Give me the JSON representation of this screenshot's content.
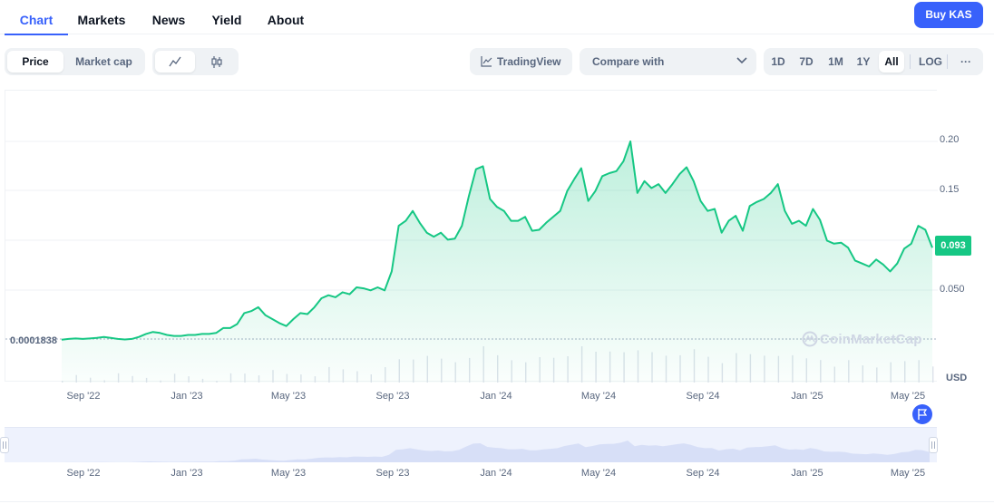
{
  "nav": {
    "tabs": [
      {
        "label": "Chart",
        "active": true
      },
      {
        "label": "Markets"
      },
      {
        "label": "News"
      },
      {
        "label": "Yield"
      },
      {
        "label": "About"
      }
    ],
    "buy_label": "Buy KAS"
  },
  "toolbar": {
    "metric": [
      "Price",
      "Market cap"
    ],
    "metric_active": "Price",
    "chart_style_icons": [
      "line-chart-icon",
      "candlestick-icon"
    ],
    "tradingview_label": "TradingView",
    "compare_label": "Compare with",
    "ranges": [
      "1D",
      "7D",
      "1M",
      "1Y",
      "All"
    ],
    "range_active": "All",
    "log_label": "LOG",
    "more_label": "···"
  },
  "chart": {
    "current_price": "0.093",
    "start_price": "0.0001838",
    "currency": "USD",
    "watermark": "CoinMarketCap",
    "y_ticks": [
      "0.20",
      "0.15",
      "0.050"
    ],
    "x_ticks": [
      "Sep '22",
      "Jan '23",
      "May '23",
      "Sep '23",
      "Jan '24",
      "May '24",
      "Sep '24",
      "Jan '25",
      "May '25"
    ],
    "line_color": "#16c784",
    "accent": "#3861fb"
  },
  "chart_data": {
    "type": "area",
    "xlabel": "",
    "ylabel": "USD",
    "ylim": [
      0,
      0.24
    ],
    "series": [
      {
        "values": [
          0.0002,
          0.001,
          0.0015,
          0.001,
          0.0015,
          0.002,
          0.003,
          0.002,
          0.001,
          0.0005,
          0.001,
          0.003,
          0.006,
          0.008,
          0.007,
          0.005,
          0.004,
          0.004,
          0.005,
          0.005,
          0.006,
          0.006,
          0.007,
          0.012,
          0.012,
          0.016,
          0.027,
          0.029,
          0.033,
          0.025,
          0.021,
          0.017,
          0.014,
          0.021,
          0.027,
          0.026,
          0.033,
          0.042,
          0.045,
          0.043,
          0.048,
          0.046,
          0.053,
          0.052,
          0.05,
          0.053,
          0.05,
          0.069,
          0.115,
          0.12,
          0.13,
          0.118,
          0.108,
          0.104,
          0.108,
          0.101,
          0.102,
          0.115,
          0.145,
          0.172,
          0.175,
          0.142,
          0.134,
          0.13,
          0.12,
          0.12,
          0.124,
          0.11,
          0.111,
          0.118,
          0.124,
          0.13,
          0.15,
          0.162,
          0.173,
          0.14,
          0.15,
          0.165,
          0.168,
          0.17,
          0.18,
          0.2,
          0.148,
          0.16,
          0.153,
          0.157,
          0.148,
          0.157,
          0.167,
          0.174,
          0.16,
          0.14,
          0.13,
          0.132,
          0.108,
          0.12,
          0.125,
          0.11,
          0.135,
          0.139,
          0.142,
          0.148,
          0.157,
          0.13,
          0.117,
          0.12,
          0.115,
          0.132,
          0.121,
          0.1,
          0.097,
          0.098,
          0.093,
          0.08,
          0.077,
          0.074,
          0.081,
          0.076,
          0.069,
          0.077,
          0.092,
          0.097,
          0.115,
          0.111,
          0.093
        ]
      }
    ]
  }
}
